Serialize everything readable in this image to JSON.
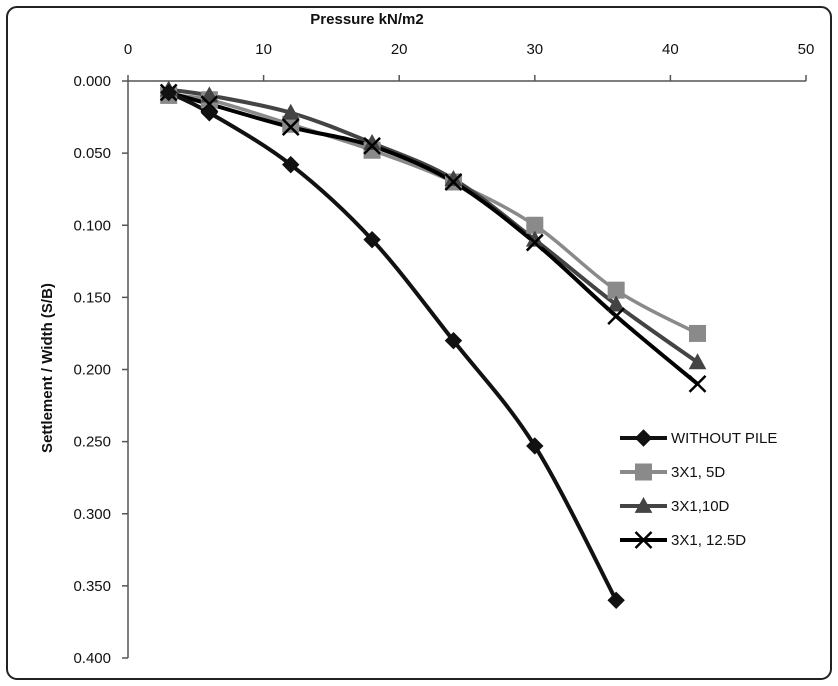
{
  "chart_data": {
    "type": "line",
    "xlabel": "Pressure kN/m2",
    "ylabel": "Settlement / Width (S/B)",
    "xlim": [
      0,
      50
    ],
    "ylim": [
      0,
      0.4
    ],
    "y_inverted": true,
    "x_axis_position": "top",
    "x_ticks": [
      "0",
      "10",
      "20",
      "30",
      "40",
      "50"
    ],
    "y_ticks": [
      "0.000",
      "0.050",
      "0.100",
      "0.150",
      "0.200",
      "0.250",
      "0.300",
      "0.350",
      "0.400"
    ],
    "grid": false,
    "legend_position": "right",
    "series": [
      {
        "name": "WITHOUT PILE",
        "marker": "diamond",
        "color": "#111111",
        "x": [
          3,
          6,
          12,
          18,
          24,
          30,
          36
        ],
        "y": [
          0.008,
          0.022,
          0.058,
          0.11,
          0.18,
          0.253,
          0.36
        ]
      },
      {
        "name": "3X1, 5D",
        "marker": "square",
        "color": "#8a8a8a",
        "x": [
          3,
          6,
          12,
          18,
          24,
          30,
          36,
          42
        ],
        "y": [
          0.01,
          0.013,
          0.03,
          0.048,
          0.07,
          0.1,
          0.145,
          0.175
        ]
      },
      {
        "name": "3X1,10D",
        "marker": "triangle",
        "color": "#444444",
        "x": [
          3,
          6,
          12,
          18,
          24,
          30,
          36,
          42
        ],
        "y": [
          0.006,
          0.01,
          0.022,
          0.043,
          0.068,
          0.11,
          0.155,
          0.195
        ]
      },
      {
        "name": "3X1, 12.5D",
        "marker": "x",
        "color": "#000000",
        "x": [
          3,
          6,
          12,
          18,
          24,
          30,
          36,
          42
        ],
        "y": [
          0.008,
          0.016,
          0.032,
          0.045,
          0.07,
          0.112,
          0.163,
          0.21
        ]
      }
    ]
  }
}
